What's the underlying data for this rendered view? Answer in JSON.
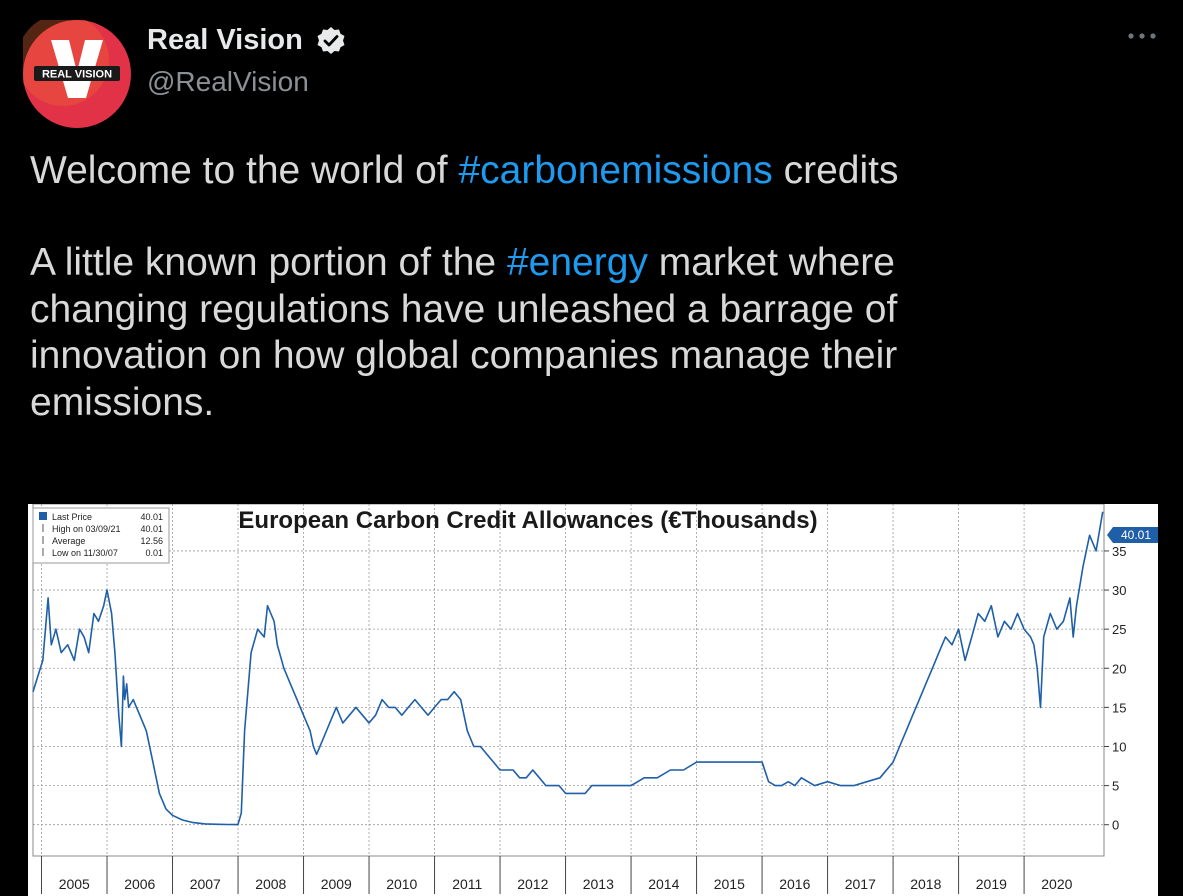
{
  "account": {
    "avatar_label": "REAL VISION",
    "display_name": "Real Vision",
    "handle": "@RealVision",
    "verified_icon": "verified-badge-icon",
    "more_icon": "more-horizontal-icon"
  },
  "tweet": {
    "line1_pre": "Welcome to the world of ",
    "line1_tag": "#carbonemissions",
    "line1_post": " credits",
    "para2_pre": "A little known portion of the ",
    "para2_tag": "#energy",
    "para2_l1_post": " market where",
    "para2_l2": "changing regulations have unleashed a barrage of",
    "para2_l3": "innovation on how global companies manage their",
    "para2_l4": "emissions."
  },
  "colors": {
    "background": "#000000",
    "text": "#d9d9d9",
    "hashtag": "#1d9bf0",
    "series": "#1f5fa8",
    "avatar": "#e23248"
  },
  "chart_data": {
    "type": "line",
    "title": "European Carbon Credit Allowances (€Thousands)",
    "xlabel": "",
    "ylabel": "",
    "ylim": [
      -4,
      41
    ],
    "yticks": [
      0,
      5,
      10,
      15,
      20,
      25,
      30,
      35
    ],
    "xticks": [
      "2005",
      "2006",
      "2007",
      "2008",
      "2009",
      "2010",
      "2011",
      "2012",
      "2013",
      "2014",
      "2015",
      "2016",
      "2017",
      "2018",
      "2019",
      "2020"
    ],
    "last_value_label": "40.01",
    "grid": true,
    "legend_position": "top-left",
    "legend": [
      {
        "label": "Last Price",
        "value": "40.01"
      },
      {
        "label": "High on 03/09/21",
        "value": "40.01"
      },
      {
        "label": "Average",
        "value": "12.56"
      },
      {
        "label": "Low on 11/30/07",
        "value": "0.01"
      }
    ],
    "series": [
      {
        "x": [
          2004.87,
          2005.02,
          2005.1,
          2005.15,
          2005.22,
          2005.3,
          2005.4,
          2005.5,
          2005.58,
          2005.65,
          2005.72,
          2005.8,
          2005.87,
          2005.95,
          2006.0,
          2006.07,
          2006.12,
          2006.18,
          2006.22,
          2006.25,
          2006.27,
          2006.3,
          2006.33,
          2006.4,
          2006.5,
          2006.6,
          2006.7,
          2006.8,
          2006.9,
          2007.0,
          2007.15,
          2007.3,
          2007.5,
          2007.7,
          2007.85,
          2007.99,
          2008.0,
          2008.05,
          2008.1,
          2008.2,
          2008.3,
          2008.4,
          2008.45,
          2008.5,
          2008.55,
          2008.6,
          2008.7,
          2008.8,
          2008.9,
          2009.0,
          2009.1,
          2009.15,
          2009.2,
          2009.3,
          2009.4,
          2009.5,
          2009.6,
          2009.7,
          2009.8,
          2009.9,
          2010.0,
          2010.1,
          2010.2,
          2010.3,
          2010.4,
          2010.5,
          2010.6,
          2010.7,
          2010.8,
          2010.9,
          2011.0,
          2011.1,
          2011.2,
          2011.3,
          2011.4,
          2011.5,
          2011.6,
          2011.7,
          2011.8,
          2011.9,
          2012.0,
          2012.1,
          2012.2,
          2012.3,
          2012.4,
          2012.5,
          2012.6,
          2012.7,
          2012.8,
          2012.9,
          2013.0,
          2013.1,
          2013.2,
          2013.3,
          2013.4,
          2013.5,
          2013.6,
          2013.7,
          2013.8,
          2013.9,
          2014.0,
          2014.2,
          2014.4,
          2014.6,
          2014.8,
          2015.0,
          2015.2,
          2015.4,
          2015.6,
          2015.8,
          2016.0,
          2016.1,
          2016.2,
          2016.3,
          2016.4,
          2016.5,
          2016.6,
          2016.8,
          2017.0,
          2017.2,
          2017.4,
          2017.6,
          2017.8,
          2018.0,
          2018.1,
          2018.2,
          2018.3,
          2018.4,
          2018.5,
          2018.6,
          2018.7,
          2018.8,
          2018.9,
          2019.0,
          2019.1,
          2019.2,
          2019.3,
          2019.4,
          2019.5,
          2019.6,
          2019.7,
          2019.8,
          2019.9,
          2020.0,
          2020.1,
          2020.15,
          2020.2,
          2020.25,
          2020.3,
          2020.4,
          2020.5,
          2020.6,
          2020.7,
          2020.75,
          2020.8,
          2020.9,
          2021.0,
          2021.1,
          2021.2
        ],
        "y": [
          17,
          21,
          29,
          23,
          25,
          22,
          23,
          21,
          25,
          24,
          22,
          27,
          26,
          28,
          30,
          27,
          22,
          14,
          10,
          19,
          16,
          18,
          15,
          16,
          14,
          12,
          8,
          4,
          2,
          1.2,
          0.6,
          0.3,
          0.1,
          0.05,
          0.03,
          0.01,
          0.05,
          1.5,
          12,
          22,
          25,
          24,
          28,
          27,
          26,
          23,
          20,
          18,
          16,
          14,
          12,
          10,
          9,
          11,
          13,
          15,
          13,
          14,
          15,
          14,
          13,
          14,
          16,
          15,
          15,
          14,
          15,
          16,
          15,
          14,
          15,
          16,
          16,
          17,
          16,
          12,
          10,
          10,
          9,
          8,
          7,
          7,
          7,
          6,
          6,
          7,
          6,
          5,
          5,
          5,
          4,
          4,
          4,
          4,
          5,
          5,
          5,
          5,
          5,
          5,
          5,
          6,
          6,
          7,
          7,
          8,
          8,
          8,
          8,
          8,
          8,
          5.5,
          5,
          5,
          5.5,
          5,
          6,
          5,
          5.5,
          5,
          5,
          5.5,
          6,
          8,
          10,
          12,
          14,
          16,
          18,
          20,
          22,
          24,
          23,
          25,
          21,
          24,
          27,
          26,
          28,
          24,
          26,
          25,
          27,
          25,
          24,
          23,
          20,
          15,
          24,
          27,
          25,
          26,
          29,
          24,
          28,
          33,
          37,
          35,
          40
        ]
      }
    ]
  }
}
